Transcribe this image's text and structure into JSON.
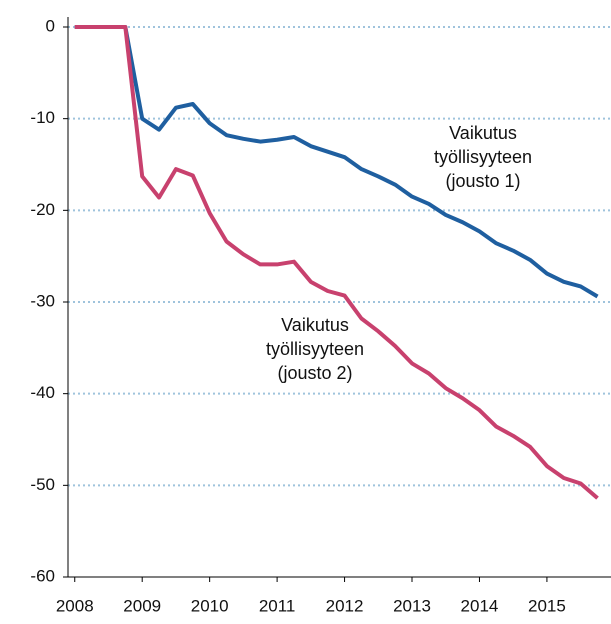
{
  "chart_data": {
    "type": "line",
    "x": [
      2008,
      2008.25,
      2008.5,
      2008.75,
      2009,
      2009.25,
      2009.5,
      2009.75,
      2010,
      2010.25,
      2010.5,
      2010.75,
      2011,
      2011.25,
      2011.5,
      2011.75,
      2012,
      2012.25,
      2012.5,
      2012.75,
      2013,
      2013.25,
      2013.5,
      2013.75,
      2014,
      2014.25,
      2014.5,
      2014.75,
      2015,
      2015.25,
      2015.5,
      2015.75
    ],
    "series": [
      {
        "color": "#1f5fa0",
        "values": [
          0,
          0,
          0,
          0,
          -10,
          -11.2,
          -8.8,
          -8.4,
          -10.5,
          -11.8,
          -12.2,
          -12.5,
          -12.3,
          -12,
          -13,
          -13.6,
          -14.2,
          -15.5,
          -16.3,
          -17.2,
          -18.5,
          -19.3,
          -20.5,
          -21.3,
          -22.3,
          -23.6,
          -24.4,
          -25.4,
          -26.9,
          -27.8,
          -28.3,
          -29.4
        ]
      },
      {
        "color": "#c8416e",
        "values": [
          0,
          0,
          0,
          0,
          -16.3,
          -18.6,
          -15.5,
          -16.2,
          -20.3,
          -23.4,
          -24.8,
          -25.9,
          -25.9,
          -25.6,
          -27.8,
          -28.8,
          -29.3,
          -31.8,
          -33.2,
          -34.8,
          -36.7,
          -37.8,
          -39.4,
          -40.5,
          -41.8,
          -43.6,
          -44.6,
          -45.8,
          -47.9,
          -49.2,
          -49.8,
          -51.4
        ]
      }
    ],
    "annotations": [
      {
        "lines": [
          "Vaikutus",
          "työllisyyteen",
          "(jousto 1)"
        ]
      },
      {
        "lines": [
          "Vaikutus",
          "työllisyyteen",
          "(jousto 2)"
        ]
      }
    ],
    "xlim": [
      2007.9,
      2015.95
    ],
    "xticks": [
      2008,
      2009,
      2010,
      2011,
      2012,
      2013,
      2014,
      2015
    ],
    "ylim": [
      -60,
      0
    ],
    "yticks": [
      0,
      -10,
      -20,
      -30,
      -40,
      -50,
      -60
    ],
    "grid": true
  }
}
